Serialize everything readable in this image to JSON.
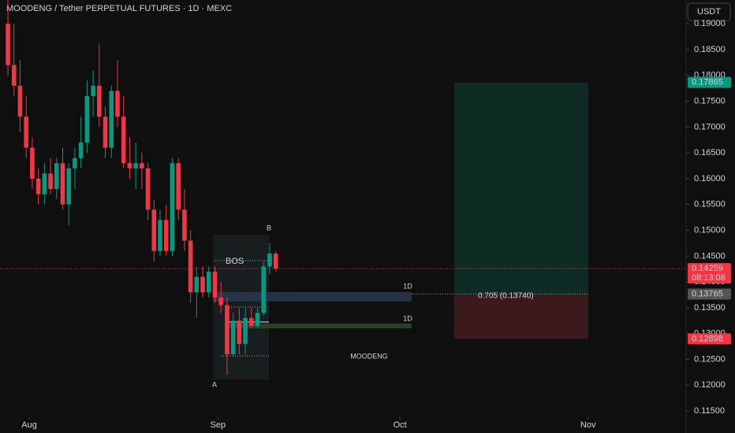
{
  "chart_data": {
    "type": "candlestick",
    "title": "MOODENG / Tether PERPETUAL FUTURES · 1D · MEXC",
    "currency": "USDT",
    "up_color": "#089981",
    "down_color": "#f23645",
    "open": [
      0.19,
      0.182,
      0.178,
      0.172,
      0.166,
      0.16,
      0.157,
      0.161,
      0.158,
      0.163,
      0.155,
      0.162,
      0.164,
      0.167,
      0.176,
      0.178,
      0.172,
      0.166,
      0.177,
      0.172,
      0.163,
      0.162,
      0.163,
      0.162,
      0.154,
      0.146,
      0.152,
      0.146,
      0.163,
      0.154,
      0.148,
      0.138,
      0.141,
      0.138,
      0.142,
      0.137,
      0.1355,
      0.126,
      0.1325,
      0.128,
      0.133,
      0.1315,
      0.134,
      0.143,
      0.1455
    ],
    "high": [
      0.196,
      0.19,
      0.183,
      0.176,
      0.168,
      0.162,
      0.163,
      0.164,
      0.164,
      0.166,
      0.163,
      0.166,
      0.172,
      0.179,
      0.181,
      0.186,
      0.174,
      0.178,
      0.183,
      0.176,
      0.168,
      0.167,
      0.165,
      0.163,
      0.156,
      0.154,
      0.155,
      0.164,
      0.164,
      0.158,
      0.15,
      0.143,
      0.143,
      0.143,
      0.143,
      0.14,
      0.137,
      0.134,
      0.135,
      0.135,
      0.135,
      0.135,
      0.144,
      0.1475,
      0.146
    ],
    "low": [
      0.18,
      0.176,
      0.169,
      0.164,
      0.158,
      0.155,
      0.155,
      0.157,
      0.156,
      0.154,
      0.151,
      0.158,
      0.162,
      0.165,
      0.172,
      0.17,
      0.164,
      0.164,
      0.17,
      0.162,
      0.16,
      0.158,
      0.158,
      0.152,
      0.144,
      0.145,
      0.145,
      0.145,
      0.152,
      0.146,
      0.136,
      0.133,
      0.137,
      0.137,
      0.136,
      0.134,
      0.122,
      0.1255,
      0.126,
      0.126,
      0.131,
      0.131,
      0.1335,
      0.1415,
      0.142
    ],
    "close": [
      0.182,
      0.178,
      0.172,
      0.166,
      0.16,
      0.157,
      0.161,
      0.158,
      0.163,
      0.155,
      0.162,
      0.164,
      0.167,
      0.176,
      0.178,
      0.172,
      0.166,
      0.177,
      0.172,
      0.163,
      0.162,
      0.163,
      0.162,
      0.154,
      0.146,
      0.152,
      0.146,
      0.163,
      0.154,
      0.148,
      0.138,
      0.141,
      0.138,
      0.142,
      0.137,
      0.1355,
      0.126,
      0.1325,
      0.128,
      0.133,
      0.1315,
      0.134,
      0.143,
      0.1455,
      0.1426
    ],
    "xlim": [
      -1.3,
      111.4
    ],
    "xticks": [
      {
        "value": 3.5,
        "label": "Aug"
      },
      {
        "value": 34.5,
        "label": "Sep"
      },
      {
        "value": 64.4,
        "label": "Oct"
      },
      {
        "value": 95.3,
        "label": "Nov"
      }
    ],
    "ylim": [
      0.1138,
      0.1946
    ],
    "yticks": [
      {
        "value": 0.19,
        "label": "0.19000"
      },
      {
        "value": 0.185,
        "label": "0.18500"
      },
      {
        "value": 0.18,
        "label": "0.18000"
      },
      {
        "value": 0.175,
        "label": "0.17500"
      },
      {
        "value": 0.17,
        "label": "0.17000"
      },
      {
        "value": 0.165,
        "label": "0.16500"
      },
      {
        "value": 0.16,
        "label": "0.16000"
      },
      {
        "value": 0.155,
        "label": "0.15500"
      },
      {
        "value": 0.15,
        "label": "0.15000"
      },
      {
        "value": 0.145,
        "label": "0.14500"
      },
      {
        "value": 0.14,
        "label": "0.14000"
      },
      {
        "value": 0.135,
        "label": "0.13500"
      },
      {
        "value": 0.13,
        "label": "0.13000"
      },
      {
        "value": 0.125,
        "label": "0.12500"
      },
      {
        "value": 0.12,
        "label": "0.12000"
      },
      {
        "value": 0.115,
        "label": "0.11500"
      }
    ],
    "last_price": 0.14259,
    "countdown": "08:13:08",
    "position": {
      "target": 0.17865,
      "entry": 0.13765,
      "stop": 0.12898
    },
    "annotations": {
      "bos": "BOS",
      "b": "B",
      "a": "A",
      "tf1": "1D",
      "tf2": "1D",
      "fib": "0.705 (0.13740)",
      "symbol": "MOODENG"
    }
  }
}
